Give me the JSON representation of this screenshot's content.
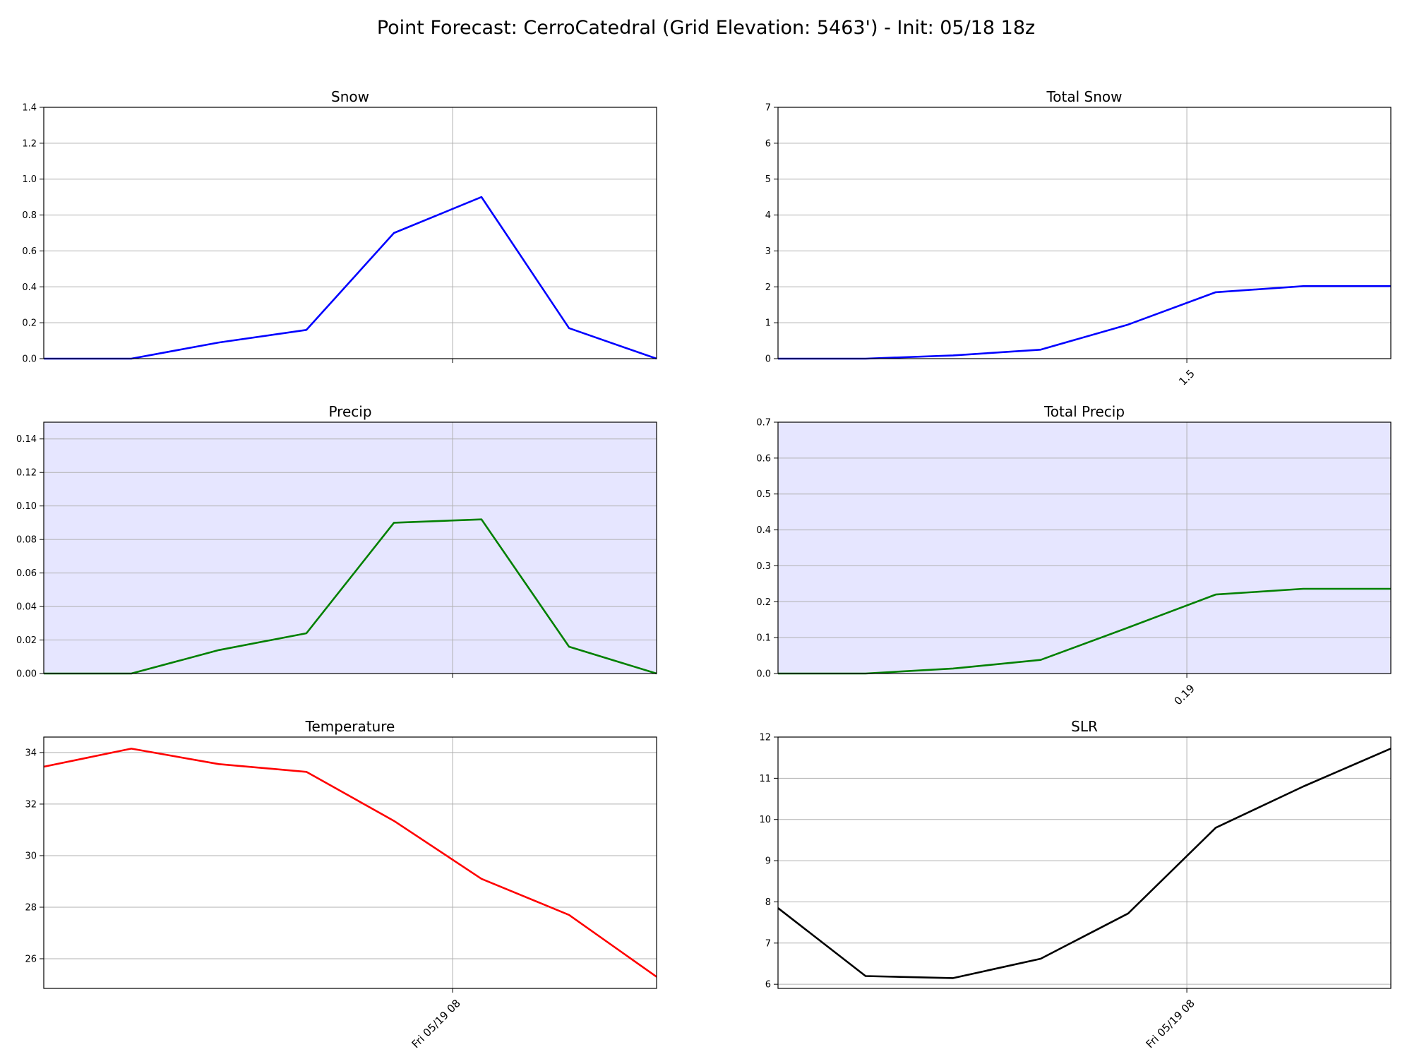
{
  "title": "Point Forecast: CerroCatedral (Grid Elevation: 5463') - Init: 05/18 18z",
  "colors": {
    "snow": "#0000ff",
    "precip": "#008000",
    "temperature": "#ff0000",
    "slr": "#000000",
    "precip_bg": "#e6e6ff",
    "grid": "#b0b0b0"
  },
  "chart_data": [
    {
      "id": "snow",
      "type": "line",
      "title": "Snow",
      "color": "#0000ff",
      "background": "#ffffff",
      "x": [
        0,
        1,
        2,
        3,
        4,
        5,
        6,
        7
      ],
      "values": [
        0.0,
        0.0,
        0.09,
        0.16,
        0.7,
        0.9,
        0.17,
        0.0
      ],
      "xlim": [
        0,
        7
      ],
      "ylim": [
        0,
        1.4
      ],
      "yticks": [
        0.0,
        0.2,
        0.4,
        0.6,
        0.8,
        1.0,
        1.2,
        1.4
      ],
      "ytick_labels": [
        "0.0",
        "0.2",
        "0.4",
        "0.6",
        "0.8",
        "1.0",
        "1.2",
        "1.4"
      ],
      "xtick_pos": [
        4.67
      ],
      "xtick_labels": [
        ""
      ],
      "grid": true
    },
    {
      "id": "total-snow",
      "type": "line",
      "title": "Total Snow",
      "color": "#0000ff",
      "background": "#ffffff",
      "x": [
        0,
        1,
        2,
        3,
        4,
        5,
        6,
        7
      ],
      "values": [
        0.0,
        0.0,
        0.09,
        0.25,
        0.95,
        1.85,
        2.02,
        2.02
      ],
      "xlim": [
        0,
        7
      ],
      "ylim": [
        0,
        7
      ],
      "yticks": [
        0,
        1,
        2,
        3,
        4,
        5,
        6,
        7
      ],
      "ytick_labels": [
        "0",
        "1",
        "2",
        "3",
        "4",
        "5",
        "6",
        "7"
      ],
      "xtick_pos": [
        4.67
      ],
      "xtick_labels": [
        "1.5"
      ],
      "grid": true
    },
    {
      "id": "precip",
      "type": "line",
      "title": "Precip",
      "color": "#008000",
      "background": "#e6e6ff",
      "x": [
        0,
        1,
        2,
        3,
        4,
        5,
        6,
        7
      ],
      "values": [
        0.0,
        0.0,
        0.014,
        0.024,
        0.09,
        0.092,
        0.016,
        0.0
      ],
      "xlim": [
        0,
        7
      ],
      "ylim": [
        0,
        0.15
      ],
      "yticks": [
        0.0,
        0.02,
        0.04,
        0.06,
        0.08,
        0.1,
        0.12,
        0.14
      ],
      "ytick_labels": [
        "0.00",
        "0.02",
        "0.04",
        "0.06",
        "0.08",
        "0.10",
        "0.12",
        "0.14"
      ],
      "xtick_pos": [
        4.67
      ],
      "xtick_labels": [
        ""
      ],
      "grid": true
    },
    {
      "id": "total-precip",
      "type": "line",
      "title": "Total Precip",
      "color": "#008000",
      "background": "#e6e6ff",
      "x": [
        0,
        1,
        2,
        3,
        4,
        5,
        6,
        7
      ],
      "values": [
        0.0,
        0.0,
        0.014,
        0.038,
        0.128,
        0.22,
        0.236,
        0.236
      ],
      "xlim": [
        0,
        7
      ],
      "ylim": [
        0,
        0.7
      ],
      "yticks": [
        0.0,
        0.1,
        0.2,
        0.3,
        0.4,
        0.5,
        0.6,
        0.7
      ],
      "ytick_labels": [
        "0.0",
        "0.1",
        "0.2",
        "0.3",
        "0.4",
        "0.5",
        "0.6",
        "0.7"
      ],
      "xtick_pos": [
        4.67
      ],
      "xtick_labels": [
        "0.19"
      ],
      "grid": true
    },
    {
      "id": "temperature",
      "type": "line",
      "title": "Temperature",
      "color": "#ff0000",
      "background": "#ffffff",
      "x": [
        0,
        1,
        2,
        3,
        4,
        5,
        6,
        7
      ],
      "values": [
        33.45,
        34.15,
        33.55,
        33.25,
        31.35,
        29.1,
        27.7,
        25.3
      ],
      "xlim": [
        0,
        7
      ],
      "ylim": [
        24.85,
        34.6
      ],
      "yticks": [
        26,
        28,
        30,
        32,
        34
      ],
      "ytick_labels": [
        "26",
        "28",
        "30",
        "32",
        "34"
      ],
      "xtick_pos": [
        4.67
      ],
      "xtick_labels": [
        "Fri 05/19 08"
      ],
      "grid": true
    },
    {
      "id": "slr",
      "type": "line",
      "title": "SLR",
      "color": "#000000",
      "background": "#ffffff",
      "x": [
        0,
        1,
        2,
        3,
        4,
        5,
        6,
        7
      ],
      "values": [
        7.85,
        6.2,
        6.15,
        6.62,
        7.72,
        9.8,
        10.8,
        11.72
      ],
      "xlim": [
        0,
        7
      ],
      "ylim": [
        5.9,
        12
      ],
      "yticks": [
        6,
        7,
        8,
        9,
        10,
        11,
        12
      ],
      "ytick_labels": [
        "6",
        "7",
        "8",
        "9",
        "10",
        "11",
        "12"
      ],
      "xtick_pos": [
        4.67
      ],
      "xtick_labels": [
        "Fri 05/19 08"
      ],
      "grid": true
    }
  ]
}
